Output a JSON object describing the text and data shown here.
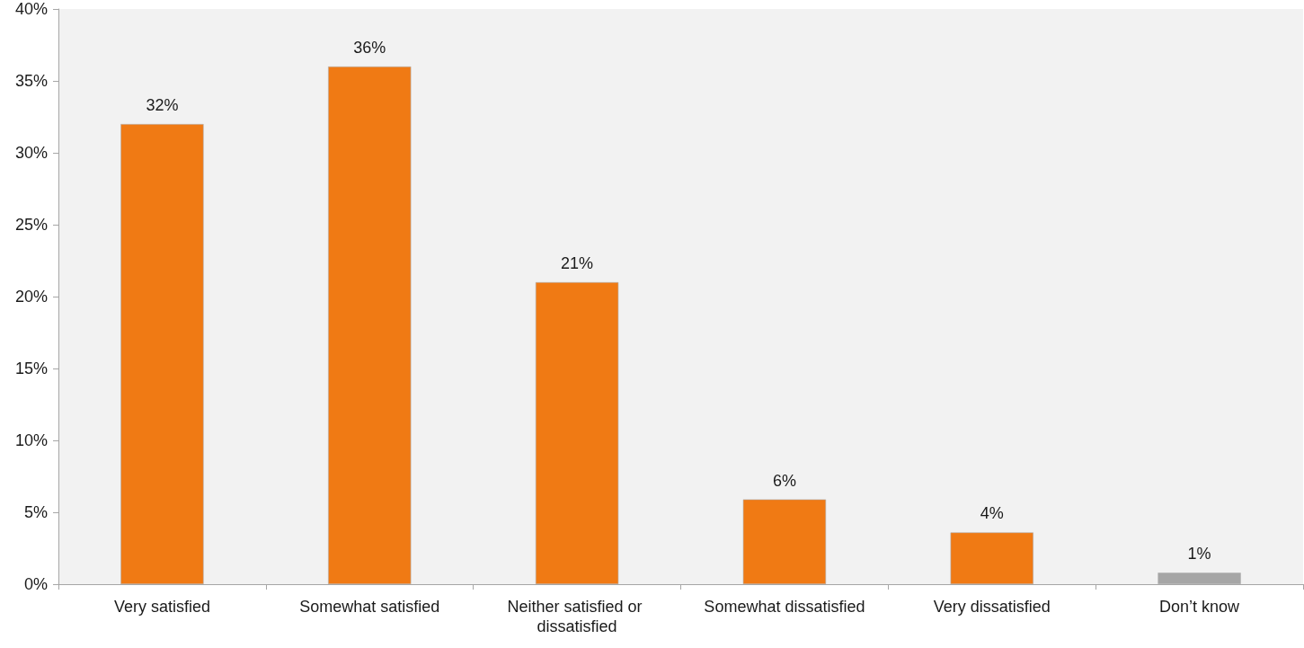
{
  "chart_data": {
    "type": "bar",
    "categories": [
      "Very satisfied",
      "Somewhat satisfied",
      "Neither satisfied or dissatisfied",
      "Somewhat dissatisfied",
      "Very dissatisfied",
      "Don’t know"
    ],
    "values": [
      32,
      36,
      21,
      5.9,
      3.6,
      0.8
    ],
    "value_labels": [
      "32%",
      "36%",
      "21%",
      "6%",
      "4%",
      "1%"
    ],
    "colors": [
      "#f07a14",
      "#f07a14",
      "#f07a14",
      "#f07a14",
      "#f07a14",
      "#a6a6a6"
    ],
    "ylim": [
      0,
      40
    ],
    "yticks": [
      {
        "value": 0,
        "label": "0%"
      },
      {
        "value": 5,
        "label": "5%"
      },
      {
        "value": 10,
        "label": "10%"
      },
      {
        "value": 15,
        "label": "15%"
      },
      {
        "value": 20,
        "label": "20%"
      },
      {
        "value": 25,
        "label": "25%"
      },
      {
        "value": 30,
        "label": "30%"
      },
      {
        "value": 35,
        "label": "35%"
      },
      {
        "value": 40,
        "label": "40%"
      }
    ]
  }
}
